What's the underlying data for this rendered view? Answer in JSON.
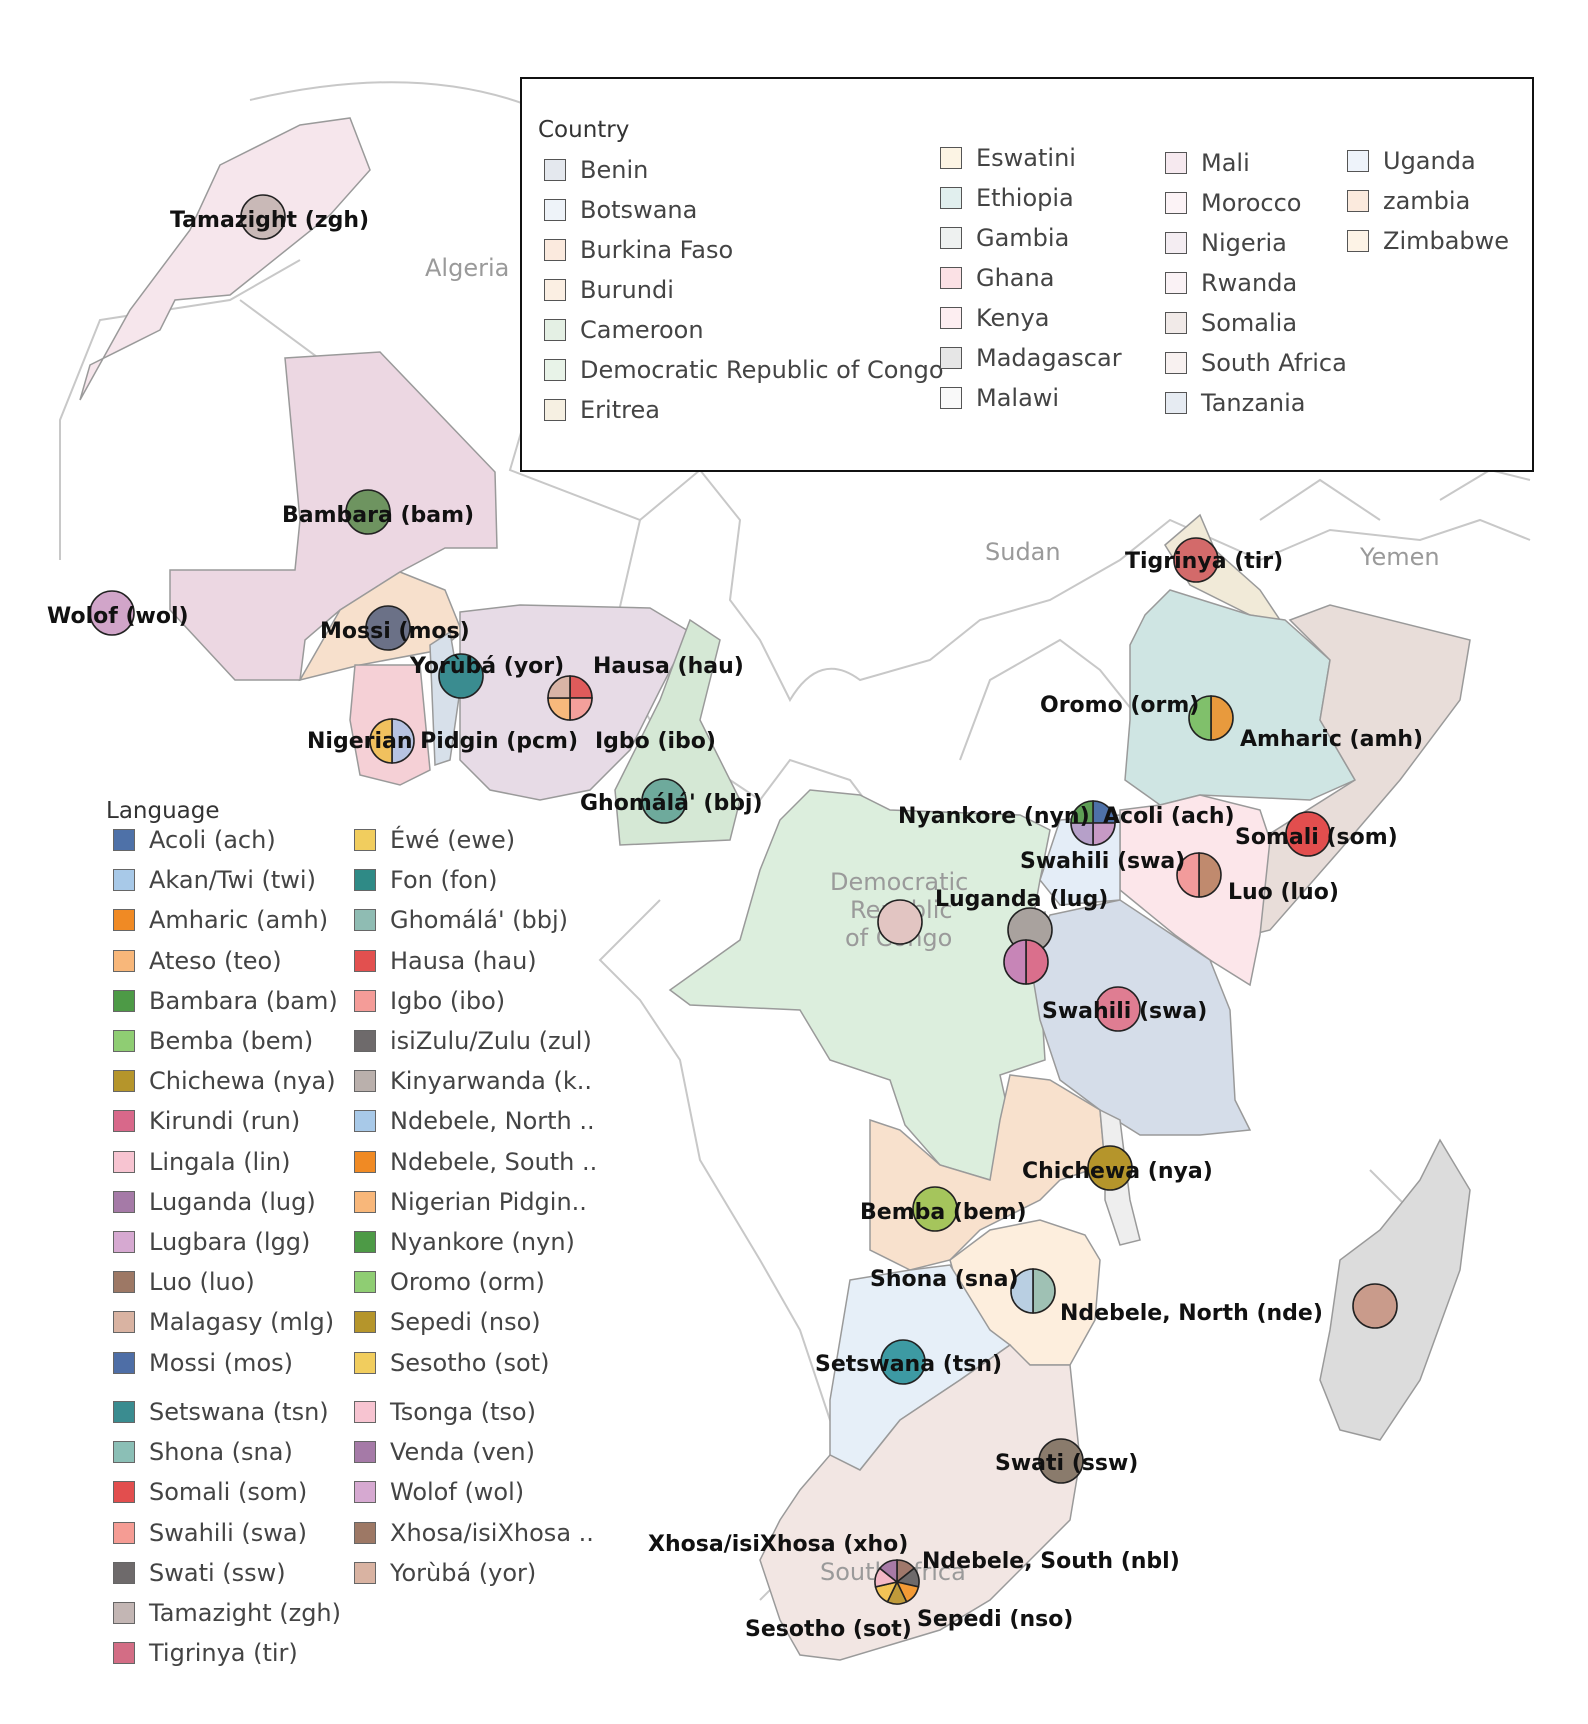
{
  "map": {
    "background_labels": [
      {
        "id": "algeria",
        "text": "Algeria"
      },
      {
        "id": "sudan",
        "text": "Sudan"
      },
      {
        "id": "yemen",
        "text": "Yemen"
      },
      {
        "id": "drc_1",
        "text": "Democratic"
      },
      {
        "id": "drc_2",
        "text": "Republic"
      },
      {
        "id": "drc_3",
        "text": "of Congo"
      },
      {
        "id": "sa",
        "text": "South Africa"
      }
    ],
    "countries": [
      {
        "name": "Morocco",
        "color": "#f6e6ec"
      },
      {
        "name": "Mali",
        "color": "#ecd7e2"
      },
      {
        "name": "Burkina Faso",
        "color": "#f7e0cc"
      },
      {
        "name": "Ghana",
        "color": "#f5d0d6"
      },
      {
        "name": "Benin",
        "color": "#d7e0ea"
      },
      {
        "name": "Nigeria",
        "color": "#e7dbe6"
      },
      {
        "name": "Cameroon",
        "color": "#d5e8d5"
      },
      {
        "name": "Democratic Republic of Congo",
        "color": "#dceedd"
      },
      {
        "name": "Eritrea",
        "color": "#f1ead8"
      },
      {
        "name": "Ethiopia",
        "color": "#cfe5e3"
      },
      {
        "name": "Somalia",
        "color": "#e8ddd9"
      },
      {
        "name": "Kenya",
        "color": "#fce6ea"
      },
      {
        "name": "Uganda",
        "color": "#e4edf7"
      },
      {
        "name": "Rwanda",
        "color": "#f4e6ec"
      },
      {
        "name": "Tanzania",
        "color": "#d5dde9"
      },
      {
        "name": "zambia",
        "color": "#f8e1cd"
      },
      {
        "name": "Malawi",
        "color": "#eeeeee"
      },
      {
        "name": "Zimbabwe",
        "color": "#fdeedd"
      },
      {
        "name": "Botswana",
        "color": "#e6eff8"
      },
      {
        "name": "South Africa",
        "color": "#f2e6e3"
      },
      {
        "name": "Madagascar",
        "color": "#dcdcdc"
      }
    ],
    "markers": [
      {
        "id": "tamazight",
        "label": "Tamazight (zgh)",
        "slices": [
          {
            "lang": "Tamazight (zgh)",
            "color": "#c9b9b7"
          }
        ]
      },
      {
        "id": "bambara",
        "label": "Bambara (bam)",
        "slices": [
          {
            "lang": "Bambara (bam)",
            "color": "#6e9460"
          }
        ]
      },
      {
        "id": "wolof",
        "label": "Wolof (wol)",
        "slices": [
          {
            "lang": "Wolof (wol)",
            "color": "#d1a5c9"
          }
        ]
      },
      {
        "id": "mossi",
        "label": "Mossi (mos)",
        "slices": [
          {
            "lang": "Mossi (mos)",
            "color": "#6b7187"
          }
        ]
      },
      {
        "id": "yoruba",
        "label": "Yorùbá (yor)",
        "slices": [
          {
            "lang": "Fon (fon)",
            "color": "#3a8c90"
          }
        ]
      },
      {
        "id": "hausa",
        "label": "Hausa (hau)",
        "slices": [
          {
            "lang": "Hausa (hau)",
            "color": "#df5b5b"
          },
          {
            "lang": "Igbo (ibo)",
            "color": "#f4a09b"
          },
          {
            "lang": "Nigerian Pidgin (pcm)",
            "color": "#f7b97c"
          },
          {
            "lang": "Yorùbá (yor)",
            "color": "#d9b4a6"
          }
        ]
      },
      {
        "id": "igbo",
        "label": "Igbo (ibo)",
        "slices": []
      },
      {
        "id": "pidgin",
        "label": "Nigerian Pidgin (pcm)",
        "slices": [
          {
            "lang": "Akan/Twi (twi)",
            "color": "#b7c3e2"
          },
          {
            "lang": "Éwé (ewe)",
            "color": "#f1c15e"
          }
        ]
      },
      {
        "id": "ghomala",
        "label": "Ghomálá' (bbj)",
        "slices": [
          {
            "lang": "Ghomálá' (bbj)",
            "color": "#6eaa9c"
          }
        ]
      },
      {
        "id": "tigrinya",
        "label": "Tigrinya (tir)",
        "slices": [
          {
            "lang": "Tigrinya (tir)",
            "color": "#d36a6a"
          }
        ]
      },
      {
        "id": "oromo",
        "label": "Oromo (orm)",
        "slices": [
          {
            "lang": "Amharic (amh)",
            "color": "#e89a3d"
          },
          {
            "lang": "Oromo (orm)",
            "color": "#80c06b"
          }
        ]
      },
      {
        "id": "amharic",
        "label": "Amharic (amh)",
        "slices": []
      },
      {
        "id": "somali",
        "label": "Somali (som)",
        "slices": [
          {
            "lang": "Somali (som)",
            "color": "#e24e4e"
          }
        ]
      },
      {
        "id": "nyankore",
        "label": "Nyankore (nyn)",
        "slices": [
          {
            "lang": "Acoli (ach)",
            "color": "#4e71a8"
          },
          {
            "lang": "Lugbara (lgg)",
            "color": "#c79ac5"
          },
          {
            "lang": "Ateso (teo)",
            "color": "#b6a0c9"
          },
          {
            "lang": "Nyankore (nyn)",
            "color": "#5e9e55"
          }
        ]
      },
      {
        "id": "acoli",
        "label": "Acoli (ach)",
        "slices": []
      },
      {
        "id": "swahili_ke",
        "label": "Swahili (swa)",
        "slices": []
      },
      {
        "id": "luo",
        "label": "Luo (luo)",
        "slices": [
          {
            "lang": "Luo (luo)",
            "color": "#c08a6e"
          },
          {
            "lang": "Swahili (swa)",
            "color": "#f29b9b"
          }
        ]
      },
      {
        "id": "drc",
        "label": "",
        "slices": [
          {
            "lang": "Lingala (lin)",
            "color": "#e2c5c2"
          }
        ]
      },
      {
        "id": "luganda",
        "label": "Luganda (lug)",
        "slices": [
          {
            "lang": "Luganda (lug)",
            "color": "#a9a29e"
          }
        ]
      },
      {
        "id": "kirundi",
        "label": "",
        "slices": [
          {
            "lang": "Kirundi (run)",
            "color": "#da6f8c"
          },
          {
            "lang": "Kinyarwanda (kin)",
            "color": "#c785b7"
          }
        ]
      },
      {
        "id": "swahili_tz",
        "label": "Swahili (swa)",
        "slices": [
          {
            "lang": "Swahili (swa)",
            "color": "#df7d92"
          }
        ]
      },
      {
        "id": "chichewa",
        "label": "Chichewa (nya)",
        "slices": [
          {
            "lang": "Chichewa (nya)",
            "color": "#b5952b"
          }
        ]
      },
      {
        "id": "bemba",
        "label": "Bemba (bem)",
        "slices": [
          {
            "lang": "Bemba (bem)",
            "color": "#a5c55c"
          }
        ]
      },
      {
        "id": "shona",
        "label": "Shona (sna)",
        "slices": [
          {
            "lang": "Shona (sna)",
            "color": "#9fc1b4"
          },
          {
            "lang": "Ndebele, North (nde)",
            "color": "#b9cfe2"
          }
        ]
      },
      {
        "id": "ndebele_n",
        "label": "Ndebele, North (nde)",
        "slices": []
      },
      {
        "id": "setswana",
        "label": "Setswana (tsn)",
        "slices": [
          {
            "lang": "Setswana (tsn)",
            "color": "#3d9aa3"
          }
        ]
      },
      {
        "id": "malagasy",
        "label": "",
        "slices": [
          {
            "lang": "Malagasy (mlg)",
            "color": "#c99b8b"
          }
        ]
      },
      {
        "id": "swati",
        "label": "Swati (ssw)",
        "slices": [
          {
            "lang": "Swati (ssw)",
            "color": "#8a7b6c"
          }
        ]
      },
      {
        "id": "xhosa",
        "label": "Xhosa/isiXhosa (xho)",
        "slices": [
          {
            "lang": "Xhosa/isiXhosa (xho)",
            "color": "#a0786b"
          },
          {
            "lang": "isiZulu/Zulu (zul)",
            "color": "#6e6a6b"
          },
          {
            "lang": "Ndebele, South (nbl)",
            "color": "#f39a35"
          },
          {
            "lang": "Sepedi (nso)",
            "color": "#bf9a3a"
          },
          {
            "lang": "Sesotho (sot)",
            "color": "#f2c356"
          },
          {
            "lang": "Tsonga (tso)",
            "color": "#f3b8c6"
          },
          {
            "lang": "Venda (ven)",
            "color": "#a77aa6"
          }
        ]
      },
      {
        "id": "ndebele_s",
        "label": "Ndebele, South (nbl)",
        "slices": []
      },
      {
        "id": "sepedi",
        "label": "Sepedi (nso)",
        "slices": []
      },
      {
        "id": "sesotho",
        "label": "Sesotho (sot)",
        "slices": []
      }
    ]
  },
  "country_legend": {
    "title": "Country",
    "items": [
      {
        "label": "Benin",
        "color": "#e4e8ee"
      },
      {
        "label": "Botswana",
        "color": "#eef3f9"
      },
      {
        "label": "Burkina Faso",
        "color": "#fbeade"
      },
      {
        "label": "Burundi",
        "color": "#fbefe3"
      },
      {
        "label": "Cameroon",
        "color": "#e4f0e4"
      },
      {
        "label": "Democratic Republic of Congo",
        "color": "#e8f3e8"
      },
      {
        "label": "Eritrea",
        "color": "#f6f0e2"
      },
      {
        "label": "Eswatini",
        "color": "#fcf4e4"
      },
      {
        "label": "Ethiopia",
        "color": "#e1efee"
      },
      {
        "label": "Gambia",
        "color": "#eef1f0"
      },
      {
        "label": "Ghana",
        "color": "#fbe1e5"
      },
      {
        "label": "Kenya",
        "color": "#fdeef1"
      },
      {
        "label": "Madagascar",
        "color": "#e6e6e6"
      },
      {
        "label": "Malawi",
        "color": "#f9f9f9"
      },
      {
        "label": "Mali",
        "color": "#f6e9ef"
      },
      {
        "label": "Morocco",
        "color": "#fcf3f6"
      },
      {
        "label": "Nigeria",
        "color": "#f4edf2"
      },
      {
        "label": "Rwanda",
        "color": "#faf2f5"
      },
      {
        "label": "Somalia",
        "color": "#f1eae8"
      },
      {
        "label": "South Africa",
        "color": "#f8f1f0"
      },
      {
        "label": "Tanzania",
        "color": "#e6ebf2"
      },
      {
        "label": "Uganda",
        "color": "#eef3fa"
      },
      {
        "label": "zambia",
        "color": "#fbeadd"
      },
      {
        "label": "Zimbabwe",
        "color": "#fdf3e6"
      }
    ]
  },
  "language_legend": {
    "title": "Language",
    "items": [
      {
        "label": "Acoli (ach)",
        "color": "#4e71a8"
      },
      {
        "label": "Akan/Twi (twi)",
        "color": "#a8c9e8"
      },
      {
        "label": "Amharic (amh)",
        "color": "#f08a24"
      },
      {
        "label": "Ateso (teo)",
        "color": "#f8b77a"
      },
      {
        "label": "Bambara (bam)",
        "color": "#4d9a46"
      },
      {
        "label": "Bemba (bem)",
        "color": "#8fcd73"
      },
      {
        "label": "Chichewa (nya)",
        "color": "#b5952b"
      },
      {
        "label": "Kirundi (run)",
        "color": "#d8688a"
      },
      {
        "label": "Lingala (lin)",
        "color": "#f7c4d1"
      },
      {
        "label": "Luganda (lug)",
        "color": "#a57aa7"
      },
      {
        "label": "Lugbara (lgg)",
        "color": "#d6a9d1"
      },
      {
        "label": "Luo (luo)",
        "color": "#9d7865"
      },
      {
        "label": "Malagasy (mlg)",
        "color": "#d9b3a2"
      },
      {
        "label": "Mossi (mos)",
        "color": "#4e6ea6"
      },
      {
        "label": "Setswana (tsn)",
        "color": "#3a8c90"
      },
      {
        "label": "Shona (sna)",
        "color": "#8bbfb6"
      },
      {
        "label": "Somali (som)",
        "color": "#e24e4e"
      },
      {
        "label": "Swahili (swa)",
        "color": "#f59c94"
      },
      {
        "label": "Swati (ssw)",
        "color": "#6e6a6b"
      },
      {
        "label": "Tamazight (zgh)",
        "color": "#c3b6b4"
      },
      {
        "label": "Tigrinya (tir)",
        "color": "#d36d85"
      },
      {
        "label": "Éwé (ewe)",
        "color": "#f1cd5e"
      },
      {
        "label": "Fon (fon)",
        "color": "#2f8a86"
      },
      {
        "label": "Ghomálá' (bbj)",
        "color": "#8fbcb3"
      },
      {
        "label": "Hausa (hau)",
        "color": "#e2504f"
      },
      {
        "label": "Igbo (ibo)",
        "color": "#f49c98"
      },
      {
        "label": "isiZulu/Zulu (zul)",
        "color": "#6e6a6b"
      },
      {
        "label": "Kinyarwanda (k..",
        "color": "#bab0ac"
      },
      {
        "label": "Ndebele, North ..",
        "color": "#a8c9e8"
      },
      {
        "label": "Ndebele, South ..",
        "color": "#f08a24"
      },
      {
        "label": "Nigerian Pidgin..",
        "color": "#f8b77a"
      },
      {
        "label": "Nyankore (nyn)",
        "color": "#4d9a46"
      },
      {
        "label": "Oromo (orm)",
        "color": "#8fcd73"
      },
      {
        "label": "Sepedi (nso)",
        "color": "#b5952b"
      },
      {
        "label": "Sesotho (sot)",
        "color": "#f1cd5e"
      },
      {
        "label": "Tsonga (tso)",
        "color": "#f7c4d1"
      },
      {
        "label": "Venda (ven)",
        "color": "#a57aa7"
      },
      {
        "label": "Wolof (wol)",
        "color": "#d6a9d1"
      },
      {
        "label": "Xhosa/isiXhosa ..",
        "color": "#9d7865"
      },
      {
        "label": "Yorùbá (yor)",
        "color": "#d9b3a2"
      }
    ]
  }
}
